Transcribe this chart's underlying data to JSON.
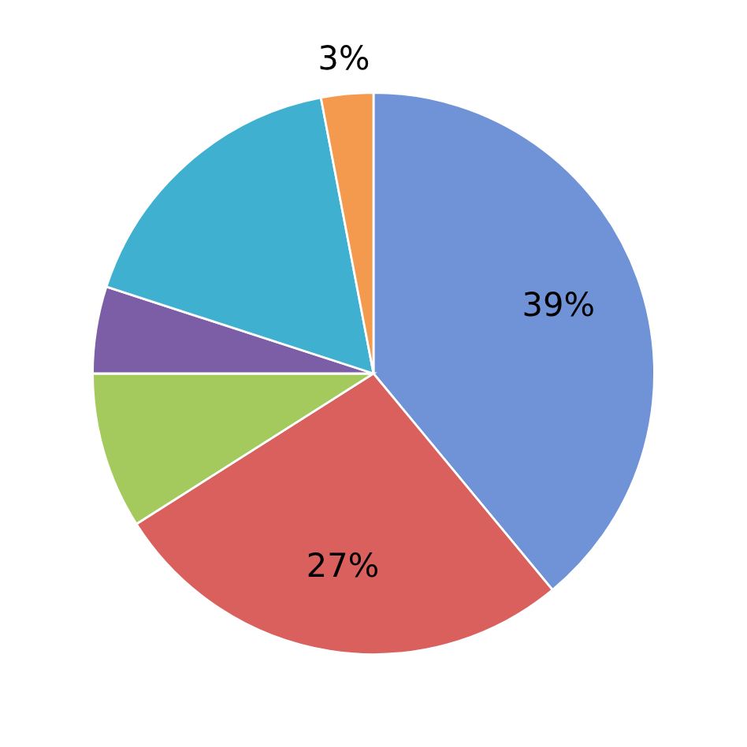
{
  "chart_data": {
    "type": "pie",
    "categories": [
      null,
      null,
      null,
      null,
      null,
      null
    ],
    "values": [
      39,
      27,
      9,
      5,
      17,
      3
    ],
    "colors": [
      "#6f93d6",
      "#d9605c",
      "#a4c95c",
      "#7b5ea6",
      "#3fb0cf",
      "#f39a4e"
    ],
    "value_labels": [
      "39%",
      "27%",
      null,
      null,
      null,
      "3%"
    ]
  }
}
